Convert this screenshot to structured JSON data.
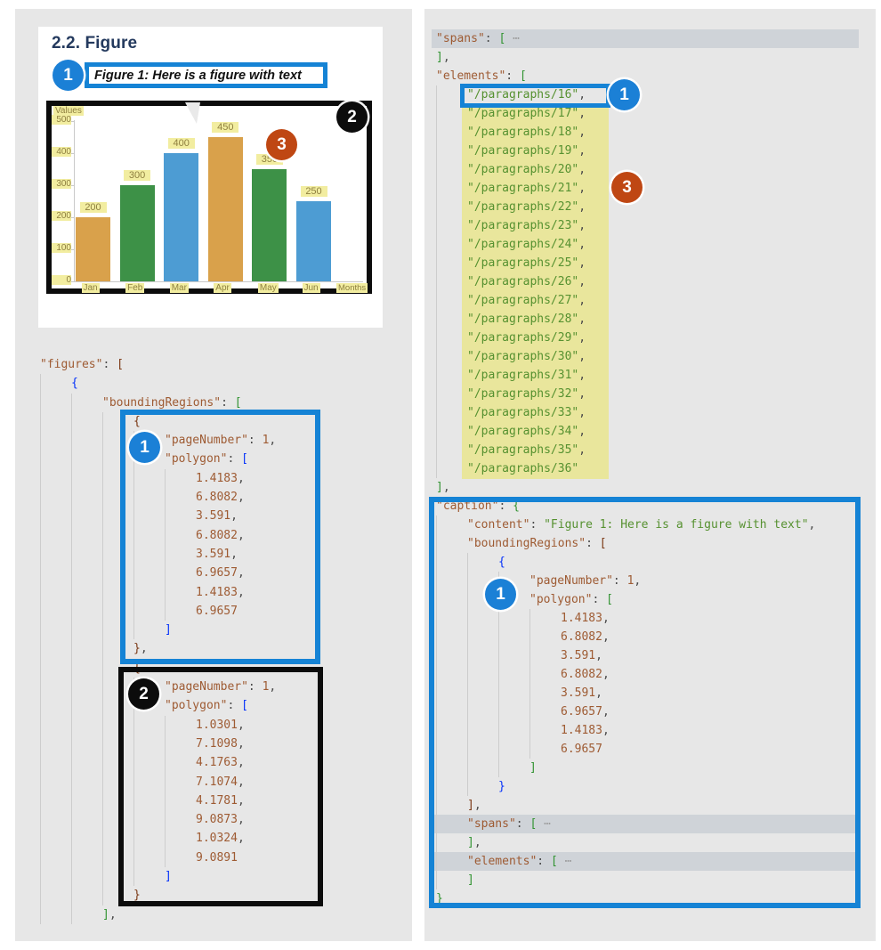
{
  "callouts": {
    "one": "1",
    "two": "2",
    "three": "3"
  },
  "document_preview": {
    "heading": "2.2. Figure",
    "caption_text": "Figure 1: Here is a figure with text"
  },
  "chart_data": {
    "type": "bar",
    "title": "",
    "categories": [
      "Jan",
      "Feb",
      "Mar",
      "Apr",
      "May",
      "Jun"
    ],
    "values": [
      200,
      300,
      400,
      450,
      350,
      250
    ],
    "bar_colors": [
      "#d9a14b",
      "#3d9147",
      "#4d9cd3",
      "#d9a14b",
      "#3d9147",
      "#4d9cd3"
    ],
    "xlabel": "Months",
    "ylabel": "Values",
    "yticks": [
      0,
      100,
      200,
      300,
      400,
      500
    ],
    "ylim": [
      0,
      500
    ],
    "grid": false,
    "legend": null
  },
  "colors": {
    "annotation_blue": "#1583d5",
    "annotation_black": "#0c0c0c",
    "callout_blue": "#1b80d6",
    "callout_orange": "#bf4713",
    "yellow_highlight": "#e9e69c",
    "gray_highlight": "#cfd3d8"
  },
  "left_code": {
    "lines": [
      {
        "i": 0,
        "t": [
          [
            "\"figures\"",
            "k"
          ],
          [
            ": ",
            "p"
          ],
          [
            "[",
            "b3"
          ]
        ]
      },
      {
        "i": 1,
        "t": [
          [
            "{",
            "b1"
          ]
        ]
      },
      {
        "i": 2,
        "t": [
          [
            "\"boundingRegions\"",
            "k"
          ],
          [
            ": ",
            "p"
          ],
          [
            "[",
            "b2"
          ]
        ]
      },
      {
        "i": 3,
        "t": [
          [
            "{",
            "b3"
          ]
        ]
      },
      {
        "i": 4,
        "t": [
          [
            "\"pageNumber\"",
            "k"
          ],
          [
            ": ",
            "p"
          ],
          [
            "1",
            "n"
          ],
          [
            ",",
            "p"
          ]
        ]
      },
      {
        "i": 4,
        "t": [
          [
            "\"polygon\"",
            "k"
          ],
          [
            ": ",
            "p"
          ],
          [
            "[",
            "b1"
          ]
        ]
      },
      {
        "i": 5,
        "t": [
          [
            "1.4183",
            "n"
          ],
          [
            ",",
            "p"
          ]
        ]
      },
      {
        "i": 5,
        "t": [
          [
            "6.8082",
            "n"
          ],
          [
            ",",
            "p"
          ]
        ]
      },
      {
        "i": 5,
        "t": [
          [
            "3.591",
            "n"
          ],
          [
            ",",
            "p"
          ]
        ]
      },
      {
        "i": 5,
        "t": [
          [
            "6.8082",
            "n"
          ],
          [
            ",",
            "p"
          ]
        ]
      },
      {
        "i": 5,
        "t": [
          [
            "3.591",
            "n"
          ],
          [
            ",",
            "p"
          ]
        ]
      },
      {
        "i": 5,
        "t": [
          [
            "6.9657",
            "n"
          ],
          [
            ",",
            "p"
          ]
        ]
      },
      {
        "i": 5,
        "t": [
          [
            "1.4183",
            "n"
          ],
          [
            ",",
            "p"
          ]
        ]
      },
      {
        "i": 5,
        "t": [
          [
            "6.9657",
            "n"
          ]
        ]
      },
      {
        "i": 4,
        "t": [
          [
            "]",
            "b1"
          ]
        ]
      },
      {
        "i": 3,
        "t": [
          [
            "}",
            "b3"
          ],
          [
            ",",
            "p"
          ]
        ]
      },
      {
        "i": 3,
        "t": [
          [
            "{",
            "b3"
          ]
        ]
      },
      {
        "i": 4,
        "t": [
          [
            "\"pageNumber\"",
            "k"
          ],
          [
            ": ",
            "p"
          ],
          [
            "1",
            "n"
          ],
          [
            ",",
            "p"
          ]
        ]
      },
      {
        "i": 4,
        "t": [
          [
            "\"polygon\"",
            "k"
          ],
          [
            ": ",
            "p"
          ],
          [
            "[",
            "b1"
          ]
        ]
      },
      {
        "i": 5,
        "t": [
          [
            "1.0301",
            "n"
          ],
          [
            ",",
            "p"
          ]
        ]
      },
      {
        "i": 5,
        "t": [
          [
            "7.1098",
            "n"
          ],
          [
            ",",
            "p"
          ]
        ]
      },
      {
        "i": 5,
        "t": [
          [
            "4.1763",
            "n"
          ],
          [
            ",",
            "p"
          ]
        ]
      },
      {
        "i": 5,
        "t": [
          [
            "7.1074",
            "n"
          ],
          [
            ",",
            "p"
          ]
        ]
      },
      {
        "i": 5,
        "t": [
          [
            "4.1781",
            "n"
          ],
          [
            ",",
            "p"
          ]
        ]
      },
      {
        "i": 5,
        "t": [
          [
            "9.0873",
            "n"
          ],
          [
            ",",
            "p"
          ]
        ]
      },
      {
        "i": 5,
        "t": [
          [
            "1.0324",
            "n"
          ],
          [
            ",",
            "p"
          ]
        ]
      },
      {
        "i": 5,
        "t": [
          [
            "9.0891",
            "n"
          ]
        ]
      },
      {
        "i": 4,
        "t": [
          [
            "]",
            "b1"
          ]
        ]
      },
      {
        "i": 3,
        "t": [
          [
            "}",
            "b3"
          ]
        ]
      },
      {
        "i": 2,
        "t": [
          [
            "]",
            "b2"
          ],
          [
            ",",
            "p"
          ]
        ]
      }
    ]
  },
  "right_code": {
    "lines": [
      {
        "i": 0,
        "hl": "gray",
        "t": [
          [
            "\"spans\"",
            "k"
          ],
          [
            ": ",
            "p"
          ],
          [
            "[",
            "b2"
          ],
          [
            " ⋯",
            "d"
          ]
        ]
      },
      {
        "i": 0,
        "t": [
          [
            "]",
            "b2"
          ],
          [
            ",",
            "p"
          ]
        ]
      },
      {
        "i": 0,
        "t": [
          [
            "\"elements\"",
            "k"
          ],
          [
            ": ",
            "p"
          ],
          [
            "[",
            "b2"
          ]
        ]
      },
      {
        "i": 1,
        "t": [
          [
            "\"/paragraphs/16\"",
            "s"
          ],
          [
            ",",
            "p"
          ]
        ]
      },
      {
        "i": 1,
        "t": [
          [
            "\"/paragraphs/17\"",
            "s"
          ],
          [
            ",",
            "p"
          ]
        ]
      },
      {
        "i": 1,
        "t": [
          [
            "\"/paragraphs/18\"",
            "s"
          ],
          [
            ",",
            "p"
          ]
        ]
      },
      {
        "i": 1,
        "t": [
          [
            "\"/paragraphs/19\"",
            "s"
          ],
          [
            ",",
            "p"
          ]
        ]
      },
      {
        "i": 1,
        "t": [
          [
            "\"/paragraphs/20\"",
            "s"
          ],
          [
            ",",
            "p"
          ]
        ]
      },
      {
        "i": 1,
        "t": [
          [
            "\"/paragraphs/21\"",
            "s"
          ],
          [
            ",",
            "p"
          ]
        ]
      },
      {
        "i": 1,
        "t": [
          [
            "\"/paragraphs/22\"",
            "s"
          ],
          [
            ",",
            "p"
          ]
        ]
      },
      {
        "i": 1,
        "t": [
          [
            "\"/paragraphs/23\"",
            "s"
          ],
          [
            ",",
            "p"
          ]
        ]
      },
      {
        "i": 1,
        "t": [
          [
            "\"/paragraphs/24\"",
            "s"
          ],
          [
            ",",
            "p"
          ]
        ]
      },
      {
        "i": 1,
        "t": [
          [
            "\"/paragraphs/25\"",
            "s"
          ],
          [
            ",",
            "p"
          ]
        ]
      },
      {
        "i": 1,
        "t": [
          [
            "\"/paragraphs/26\"",
            "s"
          ],
          [
            ",",
            "p"
          ]
        ]
      },
      {
        "i": 1,
        "t": [
          [
            "\"/paragraphs/27\"",
            "s"
          ],
          [
            ",",
            "p"
          ]
        ]
      },
      {
        "i": 1,
        "t": [
          [
            "\"/paragraphs/28\"",
            "s"
          ],
          [
            ",",
            "p"
          ]
        ]
      },
      {
        "i": 1,
        "t": [
          [
            "\"/paragraphs/29\"",
            "s"
          ],
          [
            ",",
            "p"
          ]
        ]
      },
      {
        "i": 1,
        "t": [
          [
            "\"/paragraphs/30\"",
            "s"
          ],
          [
            ",",
            "p"
          ]
        ]
      },
      {
        "i": 1,
        "t": [
          [
            "\"/paragraphs/31\"",
            "s"
          ],
          [
            ",",
            "p"
          ]
        ]
      },
      {
        "i": 1,
        "t": [
          [
            "\"/paragraphs/32\"",
            "s"
          ],
          [
            ",",
            "p"
          ]
        ]
      },
      {
        "i": 1,
        "t": [
          [
            "\"/paragraphs/33\"",
            "s"
          ],
          [
            ",",
            "p"
          ]
        ]
      },
      {
        "i": 1,
        "t": [
          [
            "\"/paragraphs/34\"",
            "s"
          ],
          [
            ",",
            "p"
          ]
        ]
      },
      {
        "i": 1,
        "t": [
          [
            "\"/paragraphs/35\"",
            "s"
          ],
          [
            ",",
            "p"
          ]
        ]
      },
      {
        "i": 1,
        "t": [
          [
            "\"/paragraphs/36\"",
            "s"
          ]
        ]
      },
      {
        "i": 0,
        "t": [
          [
            "]",
            "b2"
          ],
          [
            ",",
            "p"
          ]
        ]
      },
      {
        "i": 0,
        "t": [
          [
            "\"caption\"",
            "k"
          ],
          [
            ": ",
            "p"
          ],
          [
            "{",
            "b2"
          ]
        ]
      },
      {
        "i": 1,
        "t": [
          [
            "\"content\"",
            "k"
          ],
          [
            ": ",
            "p"
          ],
          [
            "\"Figure 1: Here is a figure with text\"",
            "s"
          ],
          [
            ",",
            "p"
          ]
        ]
      },
      {
        "i": 1,
        "t": [
          [
            "\"boundingRegions\"",
            "k"
          ],
          [
            ": ",
            "p"
          ],
          [
            "[",
            "b3"
          ]
        ]
      },
      {
        "i": 2,
        "t": [
          [
            "{",
            "b1"
          ]
        ]
      },
      {
        "i": 3,
        "t": [
          [
            "\"pageNumber\"",
            "k"
          ],
          [
            ": ",
            "p"
          ],
          [
            "1",
            "n"
          ],
          [
            ",",
            "p"
          ]
        ]
      },
      {
        "i": 3,
        "t": [
          [
            "\"polygon\"",
            "k"
          ],
          [
            ": ",
            "p"
          ],
          [
            "[",
            "b2"
          ]
        ]
      },
      {
        "i": 4,
        "t": [
          [
            "1.4183",
            "n"
          ],
          [
            ",",
            "p"
          ]
        ]
      },
      {
        "i": 4,
        "t": [
          [
            "6.8082",
            "n"
          ],
          [
            ",",
            "p"
          ]
        ]
      },
      {
        "i": 4,
        "t": [
          [
            "3.591",
            "n"
          ],
          [
            ",",
            "p"
          ]
        ]
      },
      {
        "i": 4,
        "t": [
          [
            "6.8082",
            "n"
          ],
          [
            ",",
            "p"
          ]
        ]
      },
      {
        "i": 4,
        "t": [
          [
            "3.591",
            "n"
          ],
          [
            ",",
            "p"
          ]
        ]
      },
      {
        "i": 4,
        "t": [
          [
            "6.9657",
            "n"
          ],
          [
            ",",
            "p"
          ]
        ]
      },
      {
        "i": 4,
        "t": [
          [
            "1.4183",
            "n"
          ],
          [
            ",",
            "p"
          ]
        ]
      },
      {
        "i": 4,
        "t": [
          [
            "6.9657",
            "n"
          ]
        ]
      },
      {
        "i": 3,
        "t": [
          [
            "]",
            "b2"
          ]
        ]
      },
      {
        "i": 2,
        "t": [
          [
            "}",
            "b1"
          ]
        ]
      },
      {
        "i": 1,
        "t": [
          [
            "]",
            "b3"
          ],
          [
            ",",
            "p"
          ]
        ]
      },
      {
        "i": 1,
        "hl": "gray",
        "t": [
          [
            "\"spans\"",
            "k"
          ],
          [
            ": ",
            "p"
          ],
          [
            "[",
            "b2"
          ],
          [
            " ⋯",
            "d"
          ]
        ]
      },
      {
        "i": 1,
        "t": [
          [
            "]",
            "b2"
          ],
          [
            ",",
            "p"
          ]
        ]
      },
      {
        "i": 1,
        "hl": "gray",
        "t": [
          [
            "\"elements\"",
            "k"
          ],
          [
            ": ",
            "p"
          ],
          [
            "[",
            "b2"
          ],
          [
            " ⋯",
            "d"
          ]
        ]
      },
      {
        "i": 1,
        "t": [
          [
            "]",
            "b2"
          ]
        ]
      },
      {
        "i": 0,
        "t": [
          [
            "}",
            "b2"
          ]
        ]
      }
    ]
  }
}
